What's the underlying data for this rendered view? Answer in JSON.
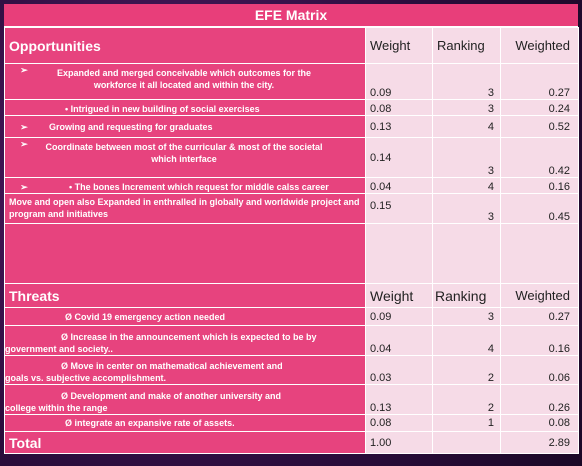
{
  "title": "EFE Matrix",
  "opportunities": {
    "heading": "Opportunities",
    "col_weight": "Weight",
    "col_ranking": "Ranking",
    "col_weighted": "Weighted",
    "rows": [
      {
        "marker": "➢",
        "text": "Expanded and merged conceivable which outcomes for the workforce it all located and  within the city.",
        "weight": "0.09",
        "ranking": "3",
        "weighted": "0.27"
      },
      {
        "marker": "",
        "text": "• Intrigued in new building of social exercises",
        "weight": "0.08",
        "ranking": "3",
        "weighted": "0.24"
      },
      {
        "marker": "➢",
        "text": "Growing and requesting for graduates",
        "weight": "0.13",
        "ranking": "4",
        "weighted": "0.52"
      },
      {
        "marker": "➢",
        "text": " Coordinate between most of the curricular & most of the societal which interface",
        "weight": "0.14",
        "ranking": "3",
        "weighted": "0.42"
      },
      {
        "marker": "➢",
        "text": "• The bones Increment which request for middle calss career",
        "weight": "0.04",
        "ranking": "4",
        "weighted": "0.16"
      },
      {
        "marker": "",
        "text": "Move and open also Expanded in enthralled in globally and worldwide project and program and initiatives",
        "weight": "0.15",
        "ranking": "3",
        "weighted": "0.45"
      }
    ]
  },
  "threats": {
    "heading": "Threats",
    "col_weight": "Weight",
    "col_ranking": "Ranking",
    "col_weighted": "Weighted",
    "rows": [
      {
        "text": "Ø  Covid 19 emergency action needed",
        "weight": "0.09",
        "ranking": "3",
        "weighted": "0.27"
      },
      {
        "text_line1": "Ø  Increase in the announcement which is  expected to be by",
        "text_line2": "government and society..",
        "weight": "0.04",
        "ranking": "4",
        "weighted": "0.16"
      },
      {
        "text_line1": "Ø  Move in center on mathematical achievement and",
        "text_line2": "goals vs. subjective accomplishment.",
        "weight": "0.03",
        "ranking": "2",
        "weighted": "0.06"
      },
      {
        "text_line1": "Ø  Development and make of another university and",
        "text_line2": "college within the range",
        "weight": "0.13",
        "ranking": "2",
        "weighted": "0.26"
      },
      {
        "text": "Ø  integrate an expansive rate of assets.",
        "weight": "0.08",
        "ranking": "1",
        "weighted": "0.08"
      }
    ]
  },
  "total": {
    "label": "Total",
    "weight": "1.00",
    "weighted": "2.89"
  }
}
